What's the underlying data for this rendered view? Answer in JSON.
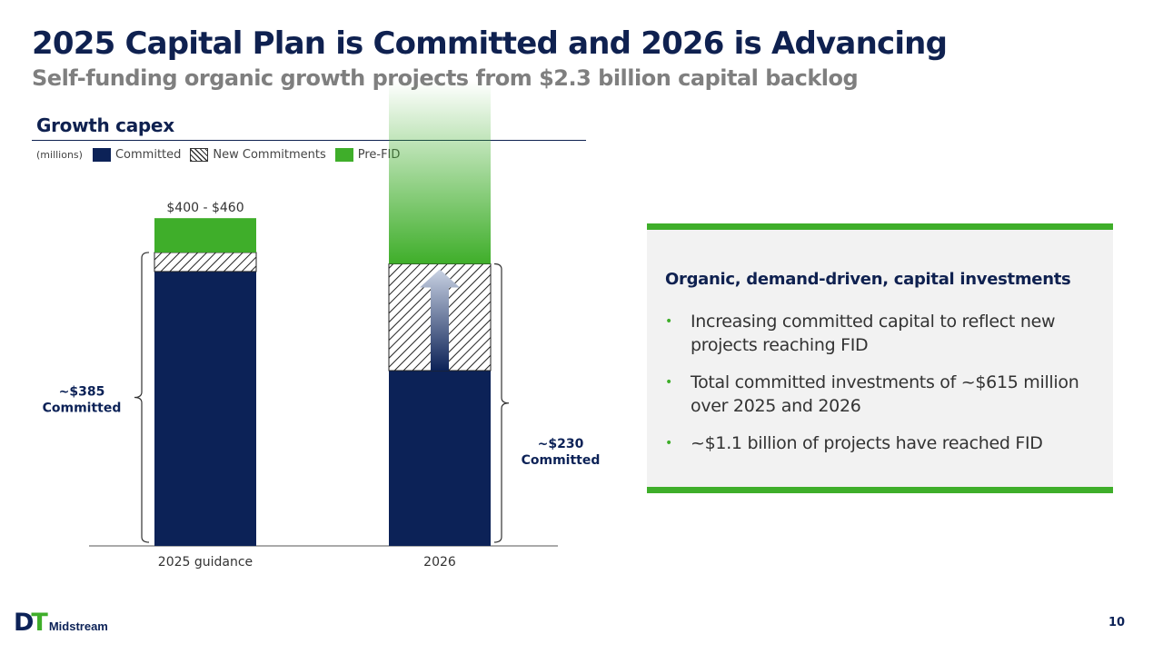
{
  "header": {
    "title": "2025 Capital Plan is Committed and 2026 is Advancing",
    "subtitle": "Self-funding organic growth projects from $2.3 billion capital backlog"
  },
  "section": {
    "heading": "Growth capex"
  },
  "colors": {
    "navy": "#0c2257",
    "green": "#3fae2a",
    "grey_panel": "#f2f2f2"
  },
  "chart_data": {
    "type": "bar",
    "units_label": "(millions)",
    "legend": [
      {
        "label": "Committed",
        "style": "solid-navy"
      },
      {
        "label": "New Commitments",
        "style": "hatched"
      },
      {
        "label": "Pre-FID",
        "style": "solid-green"
      }
    ],
    "categories": [
      "2025 guidance",
      "2026"
    ],
    "series": [
      {
        "name": "Committed",
        "values": [
          360,
          230
        ]
      },
      {
        "name": "New Commitments",
        "values": [
          25,
          140
        ]
      },
      {
        "name": "Pre-FID",
        "values": [
          45,
          240
        ]
      }
    ],
    "ylim": [
      0,
      460
    ],
    "annotations": {
      "top_label_2025": "$400 - $460",
      "brace_2025_value": "~$385",
      "brace_2025_text": "Committed",
      "brace_2026_value": "~$230",
      "brace_2026_text": "Committed"
    }
  },
  "panel": {
    "heading": "Organic, demand-driven, capital investments",
    "bullet_symbol": "•",
    "bullets": [
      "Increasing committed capital to reflect new projects reaching FID",
      "Total committed investments of ~$615 million over 2025 and 2026",
      "~$1.1 billion of projects have reached FID"
    ]
  },
  "footer": {
    "logo_d": "D",
    "logo_t": "T",
    "logo_word": "Midstream",
    "page_number": "10"
  }
}
